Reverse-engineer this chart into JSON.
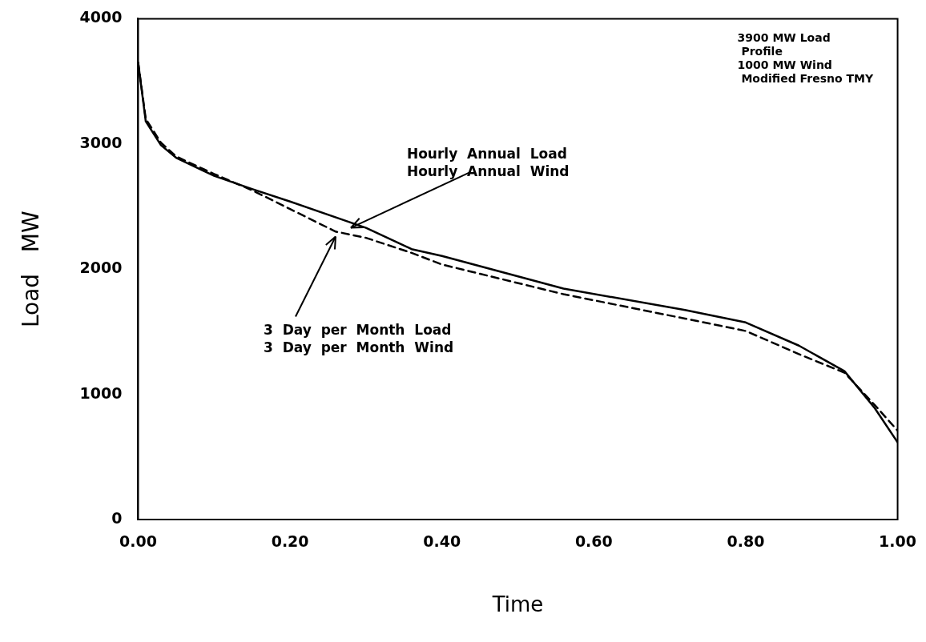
{
  "chart_data": {
    "type": "line",
    "xlabel": "Time",
    "ylabel": "Load   MW",
    "xlim": [
      0,
      1
    ],
    "ylim": [
      0,
      4000
    ],
    "xticks": [
      {
        "value": 0,
        "label": "0.00"
      },
      {
        "value": 0.2,
        "label": "0.20"
      },
      {
        "value": 0.4,
        "label": "0.40"
      },
      {
        "value": 0.6,
        "label": "0.60"
      },
      {
        "value": 0.8,
        "label": "0.80"
      },
      {
        "value": 1,
        "label": "1.00"
      }
    ],
    "yticks": [
      0,
      1000,
      2000,
      3000,
      4000
    ],
    "grid": false,
    "legend": false,
    "marker": "none",
    "series": [
      {
        "color": "#000000",
        "line_style": "solid",
        "x": [
          0,
          0.01,
          0.03,
          0.05,
          0.1,
          0.15,
          0.2,
          0.3,
          0.36,
          0.4,
          0.56,
          0.72,
          0.8,
          0.87,
          0.93,
          0.97,
          1.0
        ],
        "values": [
          3650,
          3180,
          2990,
          2890,
          2745,
          2640,
          2540,
          2330,
          2160,
          2105,
          1845,
          1673,
          1574,
          1389,
          1185,
          889,
          617
        ]
      },
      {
        "color": "#000000",
        "line_style": "dashed",
        "x": [
          0,
          0.01,
          0.03,
          0.05,
          0.1,
          0.15,
          0.2,
          0.26,
          0.3,
          0.36,
          0.4,
          0.56,
          0.72,
          0.8,
          0.87,
          0.93,
          0.97,
          1.0
        ],
        "values": [
          3650,
          3200,
          3010,
          2900,
          2760,
          2630,
          2480,
          2300,
          2250,
          2130,
          2037,
          1800,
          1605,
          1506,
          1321,
          1173,
          914,
          710
        ]
      }
    ],
    "annotations": [
      {
        "text": "Hourly  Annual  Load\nHourly  Annual  Wind",
        "x": 0.28,
        "y": 2330
      },
      {
        "text": "3  Day  per  Month  Load\n3  Day  per  Month  Wind",
        "x": 0.26,
        "y": 2260
      },
      "3900 MW Load\n Profile\n1000 MW Wind\n Modified Fresno TMY"
    ]
  }
}
